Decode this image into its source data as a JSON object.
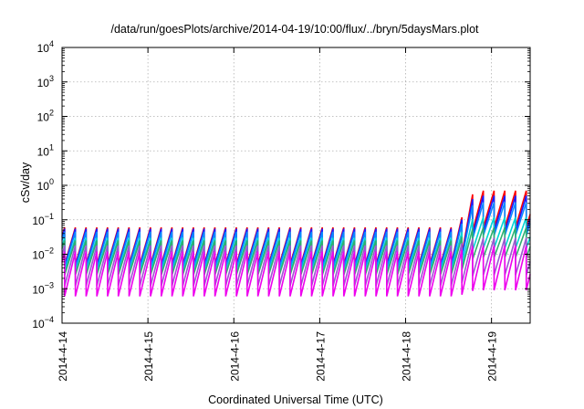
{
  "chart_data": {
    "type": "line",
    "title": "/data/run/goesPlots/archive/2014-04-19/10:00/flux/../bryn/5daysMars.plot",
    "xlabel": "Coordinated Universal Time (UTC)",
    "ylabel": "cSv/day",
    "yscale": "log",
    "ylim_exponents": [
      -4,
      4
    ],
    "y_tick_exponents": [
      -4,
      -3,
      -2,
      -1,
      0,
      1,
      2,
      3,
      4
    ],
    "xlim_days": [
      0,
      5.45
    ],
    "x_ticks": [
      {
        "label": "2014-4-14",
        "day": 0
      },
      {
        "label": "2014-4-15",
        "day": 1
      },
      {
        "label": "2014-4-16",
        "day": 2
      },
      {
        "label": "2014-4-17",
        "day": 3
      },
      {
        "label": "2014-4-18",
        "day": 4
      },
      {
        "label": "2014-4-19",
        "day": 5
      }
    ],
    "grid": true,
    "legend": "none",
    "sawtooth_period_hours": 3,
    "event_onset_day": 4.6,
    "event_peak_day": 4.8,
    "series": [
      {
        "color": "#ff0000",
        "base_max": 0.06,
        "base_min": 0.005,
        "event_max": 0.7,
        "event_min": 0.06
      },
      {
        "color": "#1a1aff",
        "base_max": 0.055,
        "base_min": 0.0045,
        "event_max": 0.5,
        "event_min": 0.045
      },
      {
        "color": "#0a8aff",
        "base_max": 0.045,
        "base_min": 0.004,
        "event_max": 0.32,
        "event_min": 0.035
      },
      {
        "color": "#00d4d4",
        "base_max": 0.03,
        "base_min": 0.003,
        "event_max": 0.12,
        "event_min": 0.015
      },
      {
        "color": "#2faf6f",
        "base_max": 0.025,
        "base_min": 0.0025,
        "event_max": 0.06,
        "event_min": 0.008
      },
      {
        "color": "#9b59d0",
        "base_max": 0.018,
        "base_min": 0.0012,
        "event_max": 0.03,
        "event_min": 0.0025
      },
      {
        "color": "#ee00ee",
        "base_max": 0.012,
        "base_min": 0.0006,
        "event_max": 0.018,
        "event_min": 0.0009
      }
    ]
  }
}
